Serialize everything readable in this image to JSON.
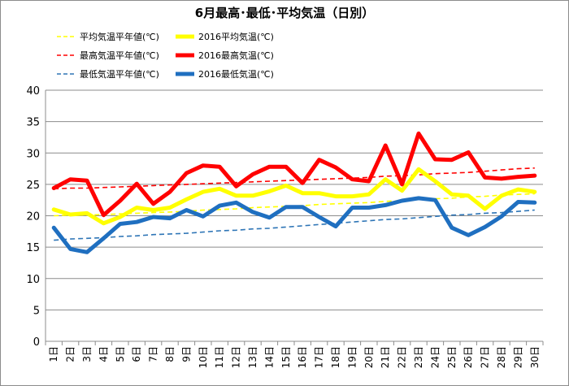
{
  "chart_data": {
    "type": "line",
    "title": "6月最高･最低･平均気温（日別）",
    "xlabel": "",
    "ylabel": "",
    "ylim": [
      0,
      40
    ],
    "yticks": [
      0,
      5,
      10,
      15,
      20,
      25,
      30,
      35,
      40
    ],
    "grid": true,
    "legend_position": "top",
    "x": [
      "1日",
      "2日",
      "3日",
      "4日",
      "5日",
      "6日",
      "7日",
      "8日",
      "9日",
      "10日",
      "11日",
      "12日",
      "13日",
      "14日",
      "15日",
      "16日",
      "17日",
      "18日",
      "19日",
      "20日",
      "21日",
      "22日",
      "23日",
      "24日",
      "25日",
      "26日",
      "27日",
      "28日",
      "29日",
      "30日"
    ],
    "series": [
      {
        "name": "平均気温平年値(℃)",
        "color": "#ffff00",
        "style": "dashed",
        "values": [
          20.0,
          20.1,
          20.1,
          20.2,
          20.3,
          20.4,
          20.5,
          20.6,
          20.7,
          20.9,
          21.0,
          21.1,
          21.3,
          21.4,
          21.5,
          21.6,
          21.8,
          21.9,
          22.0,
          22.1,
          22.3,
          22.4,
          22.6,
          22.7,
          22.8,
          23.0,
          23.1,
          23.3,
          23.4,
          23.5
        ]
      },
      {
        "name": "2016平均気温(℃)",
        "color": "#ffff00",
        "style": "solid",
        "values": [
          21.0,
          20.2,
          20.4,
          18.8,
          19.8,
          21.3,
          20.9,
          21.3,
          22.6,
          23.8,
          24.3,
          23.2,
          23.2,
          23.9,
          24.8,
          23.6,
          23.6,
          23.1,
          23.1,
          23.4,
          25.8,
          24.0,
          27.4,
          25.5,
          23.4,
          23.2,
          21.1,
          23.2,
          24.2,
          23.8
        ]
      },
      {
        "name": "最高気温平年値(℃)",
        "color": "#ff0000",
        "style": "dashed",
        "values": [
          24.3,
          24.4,
          24.4,
          24.5,
          24.6,
          24.7,
          24.8,
          24.9,
          25.0,
          25.1,
          25.2,
          25.3,
          25.4,
          25.5,
          25.6,
          25.7,
          25.8,
          25.9,
          26.0,
          26.1,
          26.3,
          26.4,
          26.5,
          26.7,
          26.8,
          26.9,
          27.1,
          27.3,
          27.5,
          27.6
        ]
      },
      {
        "name": "2016最高気温(℃)",
        "color": "#ff0000",
        "style": "solid",
        "values": [
          24.4,
          25.8,
          25.6,
          20.1,
          22.4,
          25.1,
          21.9,
          23.8,
          26.8,
          28.0,
          27.8,
          24.7,
          26.6,
          27.8,
          27.8,
          25.2,
          28.9,
          27.7,
          25.8,
          25.5,
          31.2,
          25.0,
          33.1,
          29.0,
          28.9,
          30.1,
          26.1,
          25.9,
          26.2,
          26.4
        ]
      },
      {
        "name": "最低気温平年値(℃)",
        "color": "#2e75b6",
        "style": "dashed",
        "values": [
          16.1,
          16.3,
          16.4,
          16.5,
          16.7,
          16.8,
          17.0,
          17.1,
          17.2,
          17.4,
          17.6,
          17.7,
          17.9,
          18.0,
          18.2,
          18.4,
          18.6,
          18.8,
          19.0,
          19.2,
          19.4,
          19.5,
          19.7,
          19.9,
          20.1,
          20.2,
          20.4,
          20.5,
          20.7,
          20.9
        ]
      },
      {
        "name": "2016最低気温(℃)",
        "color": "#1f6fc0",
        "style": "solid",
        "values": [
          18.1,
          14.7,
          14.2,
          16.4,
          18.7,
          19.0,
          19.8,
          19.6,
          20.9,
          19.9,
          21.6,
          22.1,
          20.6,
          19.7,
          21.4,
          21.4,
          19.8,
          18.3,
          21.3,
          21.3,
          21.7,
          22.4,
          22.8,
          22.5,
          18.1,
          16.9,
          18.2,
          19.9,
          22.2,
          22.1
        ]
      }
    ]
  }
}
